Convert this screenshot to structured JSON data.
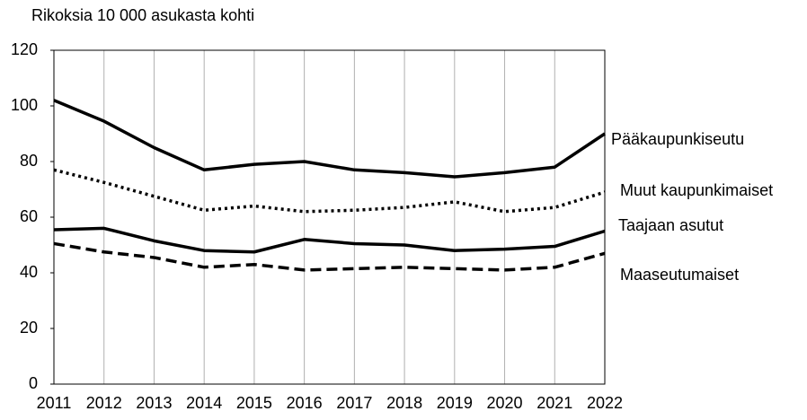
{
  "chart_data": {
    "type": "line",
    "ylabel": "Rikoksia 10 000 asukasta kohti",
    "x": [
      2011,
      2012,
      2013,
      2014,
      2015,
      2016,
      2017,
      2018,
      2019,
      2020,
      2021,
      2022
    ],
    "xlim": [
      2011,
      2022
    ],
    "xticks": [
      2011,
      2012,
      2013,
      2014,
      2015,
      2016,
      2017,
      2018,
      2019,
      2020,
      2021,
      2022
    ],
    "ylim": [
      0,
      120
    ],
    "yticks": [
      0,
      20,
      40,
      60,
      80,
      100,
      120
    ],
    "grid": "x",
    "series": [
      {
        "name": "Pääkaupunkiseutu",
        "color": "#000000",
        "dash": "solid",
        "values": [
          102,
          94.5,
          85,
          77,
          79,
          80,
          77,
          76,
          74.5,
          76,
          78,
          90
        ]
      },
      {
        "name": "Muut kaupunkimaiset",
        "color": "#000000",
        "dash": "dotted",
        "values": [
          77,
          72.5,
          67.5,
          62.5,
          64,
          62,
          62.5,
          63.5,
          65.5,
          62,
          63.5,
          69
        ]
      },
      {
        "name": "Taajaan asutut",
        "color": "#000000",
        "dash": "solid",
        "values": [
          55.5,
          56,
          51.5,
          48,
          47.5,
          52,
          50.5,
          50,
          48,
          48.5,
          49.5,
          55
        ]
      },
      {
        "name": "Maaseutumaiset",
        "color": "#000000",
        "dash": "dashed",
        "values": [
          50.5,
          47.5,
          45.5,
          42,
          43,
          41,
          41.5,
          42,
          41.5,
          41,
          42,
          47
        ]
      }
    ]
  }
}
